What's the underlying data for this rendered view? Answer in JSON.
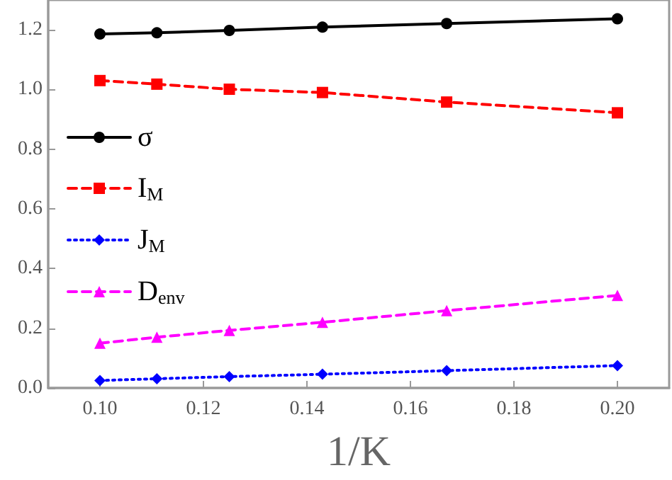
{
  "chart_data": {
    "type": "line",
    "xlabel": "1/K",
    "x": [
      0.1,
      0.111,
      0.125,
      0.143,
      0.167,
      0.2
    ],
    "series": [
      {
        "name": "σ",
        "color": "#000000",
        "marker": "circle",
        "line_style": "solid",
        "values": [
          1.186,
          1.19,
          1.198,
          1.209,
          1.221,
          1.237
        ]
      },
      {
        "name": "I$_{M}$",
        "color": "#ff0000",
        "marker": "square",
        "line_style": "dashed",
        "values": [
          1.03,
          1.018,
          1.001,
          0.99,
          0.958,
          0.922
        ]
      },
      {
        "name": "J$_{M}$",
        "color": "#0000ff",
        "marker": "diamond",
        "line_style": "dotted",
        "values": [
          0.025,
          0.031,
          0.038,
          0.046,
          0.058,
          0.075
        ]
      },
      {
        "name": "D$_{env}$",
        "color": "#ff00ff",
        "marker": "triangle",
        "line_style": "dashed",
        "values": [
          0.15,
          0.17,
          0.193,
          0.22,
          0.259,
          0.31
        ]
      }
    ],
    "xlim": [
      0.09,
      0.21
    ],
    "xticks": [
      {
        "value": 0.1,
        "label": "0.10"
      },
      {
        "value": 0.12,
        "label": "0.12"
      },
      {
        "value": 0.14,
        "label": "0.14"
      },
      {
        "value": 0.16,
        "label": "0.16"
      },
      {
        "value": 0.18,
        "label": "0.18"
      },
      {
        "value": 0.2,
        "label": "0.20"
      }
    ],
    "ylim": [
      0,
      1.3
    ],
    "yticks": [
      {
        "value": 0,
        "label": "0.0"
      },
      {
        "value": 0.2,
        "label": "0.2"
      },
      {
        "value": 0.4,
        "label": "0.4"
      },
      {
        "value": 0.6,
        "label": "0.6"
      },
      {
        "value": 0.8,
        "label": "0.8"
      },
      {
        "value": 1,
        "label": "1.0"
      },
      {
        "value": 1.2,
        "label": "1.2"
      }
    ],
    "legend": "left",
    "grid": false
  }
}
